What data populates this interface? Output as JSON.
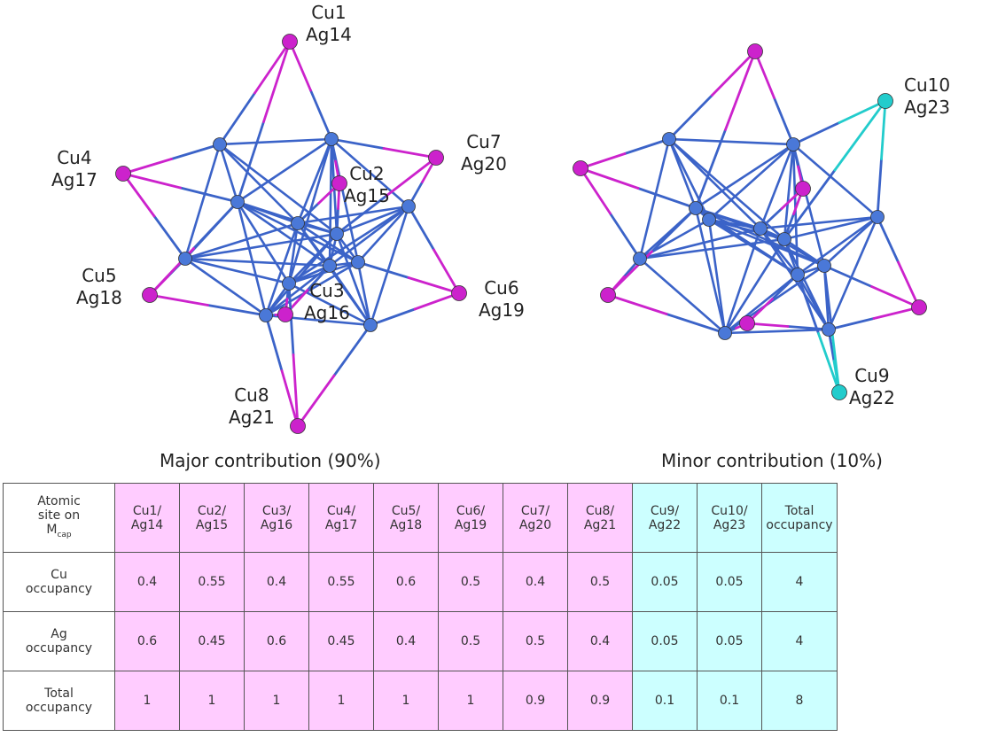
{
  "colors": {
    "cluster_bond": "#3b63c8",
    "cap_atom": "#cc22cc",
    "minor_atom": "#22cccc",
    "table_pink": "#ffccff",
    "table_cyan": "#ccffff"
  },
  "labels_major": [
    {
      "cu": "Cu1",
      "ag": "Ag14"
    },
    {
      "cu": "Cu2",
      "ag": "Ag15"
    },
    {
      "cu": "Cu3",
      "ag": "Ag16"
    },
    {
      "cu": "Cu4",
      "ag": "Ag17"
    },
    {
      "cu": "Cu5",
      "ag": "Ag18"
    },
    {
      "cu": "Cu6",
      "ag": "Ag19"
    },
    {
      "cu": "Cu7",
      "ag": "Ag20"
    },
    {
      "cu": "Cu8",
      "ag": "Ag21"
    }
  ],
  "labels_minor": [
    {
      "cu": "Cu10",
      "ag": "Ag23"
    },
    {
      "cu": "Cu9",
      "ag": "Ag22"
    }
  ],
  "captions": {
    "major": "Major contribution (90%)",
    "minor": "Minor contribution (10%)"
  },
  "table": {
    "header": {
      "first_line1": "Atomic",
      "first_line2": "site on",
      "first_line3": "M",
      "first_sub": "cap",
      "sites": [
        {
          "cu": "Cu1/",
          "ag": "Ag14"
        },
        {
          "cu": "Cu2/",
          "ag": "Ag15"
        },
        {
          "cu": "Cu3/",
          "ag": "Ag16"
        },
        {
          "cu": "Cu4/",
          "ag": "Ag17"
        },
        {
          "cu": "Cu5/",
          "ag": "Ag18"
        },
        {
          "cu": "Cu6/",
          "ag": "Ag19"
        },
        {
          "cu": "Cu7/",
          "ag": "Ag20"
        },
        {
          "cu": "Cu8/",
          "ag": "Ag21"
        },
        {
          "cu": "Cu9/",
          "ag": "Ag22"
        },
        {
          "cu": "Cu10/",
          "ag": "Ag23"
        }
      ],
      "total_line1": "Total",
      "total_line2": "occupancy"
    },
    "rows": [
      {
        "label1": "Cu",
        "label2": "occupancy",
        "values": [
          "0.4",
          "0.55",
          "0.4",
          "0.55",
          "0.6",
          "0.5",
          "0.4",
          "0.5",
          "0.05",
          "0.05"
        ],
        "total": "4"
      },
      {
        "label1": "Ag",
        "label2": "occupancy",
        "values": [
          "0.6",
          "0.45",
          "0.6",
          "0.45",
          "0.4",
          "0.5",
          "0.5",
          "0.4",
          "0.05",
          "0.05"
        ],
        "total": "4"
      },
      {
        "label1": "Total",
        "label2": "occupancy",
        "values": [
          "1",
          "1",
          "1",
          "1",
          "1",
          "1",
          "0.9",
          "0.9",
          "0.1",
          "0.1"
        ],
        "total": "8"
      }
    ]
  }
}
